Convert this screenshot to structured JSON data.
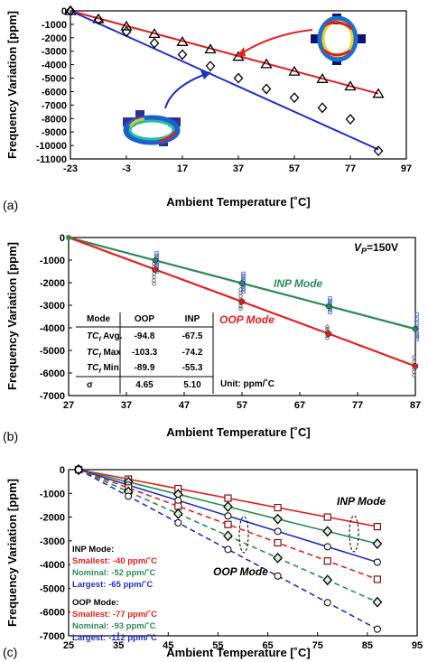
{
  "chart_data": [
    {
      "panel_label": "(a)",
      "type": "line",
      "xlabel": "Ambient Temperature [˚C]",
      "ylabel": "Frequency Variation [ppm]",
      "xlim": [
        -23,
        97
      ],
      "ylim": [
        -11000,
        0
      ],
      "xticks": [
        "-23",
        "-3",
        "17",
        "37",
        "57",
        "77",
        "97"
      ],
      "yticks": [
        "0",
        "-1000",
        "-2000",
        "-3000",
        "-4000",
        "-5000",
        "-6000",
        "-7000",
        "-8000",
        "-9000",
        "-10000",
        "-11000"
      ],
      "grid": false,
      "series": [
        {
          "color": "#e02020",
          "marker": "triangle",
          "fit": [
            [
              -23,
              0
            ],
            [
              87,
              -6150
            ]
          ],
          "x": [
            -23,
            -13,
            -3,
            7,
            17,
            27,
            37,
            47,
            57,
            67,
            77,
            87
          ],
          "y": [
            0,
            -600,
            -1150,
            -1700,
            -2300,
            -2850,
            -3400,
            -3950,
            -4500,
            -5050,
            -5600,
            -6150
          ]
        },
        {
          "color": "#2030c0",
          "marker": "diamond",
          "fit": [
            [
              -23,
              0
            ],
            [
              87,
              -10300
            ]
          ],
          "x": [
            -23,
            -13,
            -3,
            7,
            17,
            27,
            37,
            47,
            57,
            67,
            77,
            87
          ],
          "y": [
            0,
            -650,
            -1550,
            -2400,
            -3250,
            -4100,
            -5000,
            -5800,
            -6450,
            -7200,
            -8050,
            -10400
          ]
        }
      ]
    },
    {
      "panel_label": "(b)",
      "type": "line",
      "xlabel": "Ambient Temperature [˚C]",
      "ylabel": "Frequency Variation [ppm]",
      "xlim": [
        27,
        87
      ],
      "ylim": [
        -7000,
        0
      ],
      "xticks": [
        "27",
        "37",
        "47",
        "57",
        "67",
        "77",
        "87"
      ],
      "yticks": [
        "0",
        "-1000",
        "-2000",
        "-3000",
        "-4000",
        "-5000",
        "-6000",
        "-7000"
      ],
      "grid": false,
      "annotation_vp": "V",
      "annotation_vp_sub": "P",
      "annotation_vp_value": "=150V",
      "series": [
        {
          "name": "INP Mode",
          "color": "#2e8b57",
          "x": [
            27,
            42,
            57,
            72,
            87
          ],
          "y": [
            0,
            -1013,
            -2025,
            -3038,
            -4050
          ],
          "samples": [
            [
              -700,
              -800,
              -900,
              -1000,
              -1100,
              -1200,
              -1300,
              -1400,
              -1500
            ],
            [
              -1600,
              -1700,
              -1800,
              -1900,
              -2000,
              -2100,
              -2200,
              -2300,
              -2400
            ],
            [
              -2700,
              -2800,
              -2900,
              -3000,
              -3100,
              -3200,
              -3300
            ],
            [
              -3400,
              -3600,
              -3800,
              -4000,
              -4200,
              -4300,
              -4400,
              -4500
            ]
          ],
          "sample_color": "#3a5fcd"
        },
        {
          "name": "OOP Mode",
          "color": "#e02020",
          "x": [
            27,
            42,
            57,
            72,
            87
          ],
          "y": [
            0,
            -1420,
            -2840,
            -4260,
            -5700
          ],
          "samples": [
            [
              -1000,
              -1150,
              -1300,
              -1450,
              -1600,
              -1750,
              -1900,
              -2050
            ],
            [
              -2300,
              -2450,
              -2600,
              -2750,
              -2900,
              -3050,
              -3150
            ],
            [
              -3950,
              -4050,
              -4150,
              -4250,
              -4350,
              -4450
            ],
            [
              -5300,
              -5500,
              -5650,
              -5800,
              -5950,
              -6100
            ]
          ],
          "sample_color": "#555555"
        }
      ],
      "table": {
        "headers": [
          "Mode",
          "OOP",
          "INP"
        ],
        "rows": [
          {
            "label": "TC",
            "label_sub": "f",
            "label_rest": " Avg.",
            "values": [
              "-94.8",
              "-67.5"
            ]
          },
          {
            "label": "TC",
            "label_sub": "f",
            "label_rest": " Max",
            "values": [
              "-103.3",
              "-74.2"
            ]
          },
          {
            "label": "TC",
            "label_sub": "f",
            "label_rest": " Min",
            "values": [
              "-89.9",
              "-55.3"
            ]
          },
          {
            "label": "σ",
            "label_sub": "",
            "label_rest": "",
            "values": [
              "4.65",
              "5.10"
            ]
          }
        ],
        "unit": "Unit: ppm/˚C"
      }
    },
    {
      "panel_label": "(c)",
      "type": "line",
      "xlabel": "Ambient Temperature [˚C]",
      "ylabel": "Frequency Variation [ppm]",
      "xlim": [
        25,
        95
      ],
      "ylim": [
        -7000,
        0
      ],
      "xticks": [
        "25",
        "35",
        "45",
        "55",
        "65",
        "75",
        "85",
        "95"
      ],
      "yticks": [
        "0",
        "-1000",
        "-2000",
        "-3000",
        "-4000",
        "-5000",
        "-6000",
        "-7000"
      ],
      "grid": false,
      "annotations": {
        "inp": "INP Mode",
        "oop": "OOP Mode"
      },
      "legend": {
        "inp_title": "INP Mode:",
        "inp_items": [
          {
            "text": "Smallest: -40 ppm/˚C",
            "color": "#e02020"
          },
          {
            "text": "Nominal: -52 ppm/˚C",
            "color": "#2e8b57"
          },
          {
            "text": "Largest: -65 ppm/˚C",
            "color": "#2030c0"
          }
        ],
        "oop_title": "OOP Mode:",
        "oop_items": [
          {
            "text": "Smallest: -77 ppm/˚C",
            "color": "#e02020"
          },
          {
            "text": "Nominal: -93 ppm/˚C",
            "color": "#2e8b57"
          },
          {
            "text": "Largest: -112 ppm/˚C",
            "color": "#2030c0"
          }
        ]
      },
      "series": [
        {
          "mode": "INP",
          "color": "#e02020",
          "marker": "square",
          "dash": false,
          "x": [
            27,
            37,
            47,
            57,
            67,
            77,
            87
          ],
          "y": [
            0,
            -400,
            -800,
            -1200,
            -1600,
            -2000,
            -2400
          ]
        },
        {
          "mode": "INP",
          "color": "#2e8b57",
          "marker": "diamond",
          "dash": false,
          "x": [
            27,
            37,
            47,
            57,
            67,
            77,
            87
          ],
          "y": [
            0,
            -520,
            -1040,
            -1560,
            -2080,
            -2600,
            -3120
          ]
        },
        {
          "mode": "INP",
          "color": "#2030c0",
          "marker": "circle",
          "dash": false,
          "x": [
            27,
            37,
            47,
            57,
            67,
            77,
            87
          ],
          "y": [
            0,
            -650,
            -1300,
            -1950,
            -2600,
            -3250,
            -3900
          ]
        },
        {
          "mode": "OOP",
          "color": "#e02020",
          "marker": "square",
          "dash": true,
          "x": [
            27,
            37,
            47,
            57,
            67,
            77,
            87
          ],
          "y": [
            0,
            -770,
            -1540,
            -2310,
            -3080,
            -3850,
            -4620
          ]
        },
        {
          "mode": "OOP",
          "color": "#2e8b57",
          "marker": "diamond",
          "dash": true,
          "x": [
            27,
            37,
            47,
            57,
            67,
            77,
            87
          ],
          "y": [
            0,
            -930,
            -1860,
            -2790,
            -3720,
            -4650,
            -5580
          ]
        },
        {
          "mode": "OOP",
          "color": "#2030c0",
          "marker": "circle",
          "dash": true,
          "x": [
            27,
            37,
            47,
            57,
            67,
            77,
            87
          ],
          "y": [
            0,
            -1120,
            -2240,
            -3360,
            -4480,
            -5600,
            -6720
          ]
        }
      ]
    }
  ]
}
